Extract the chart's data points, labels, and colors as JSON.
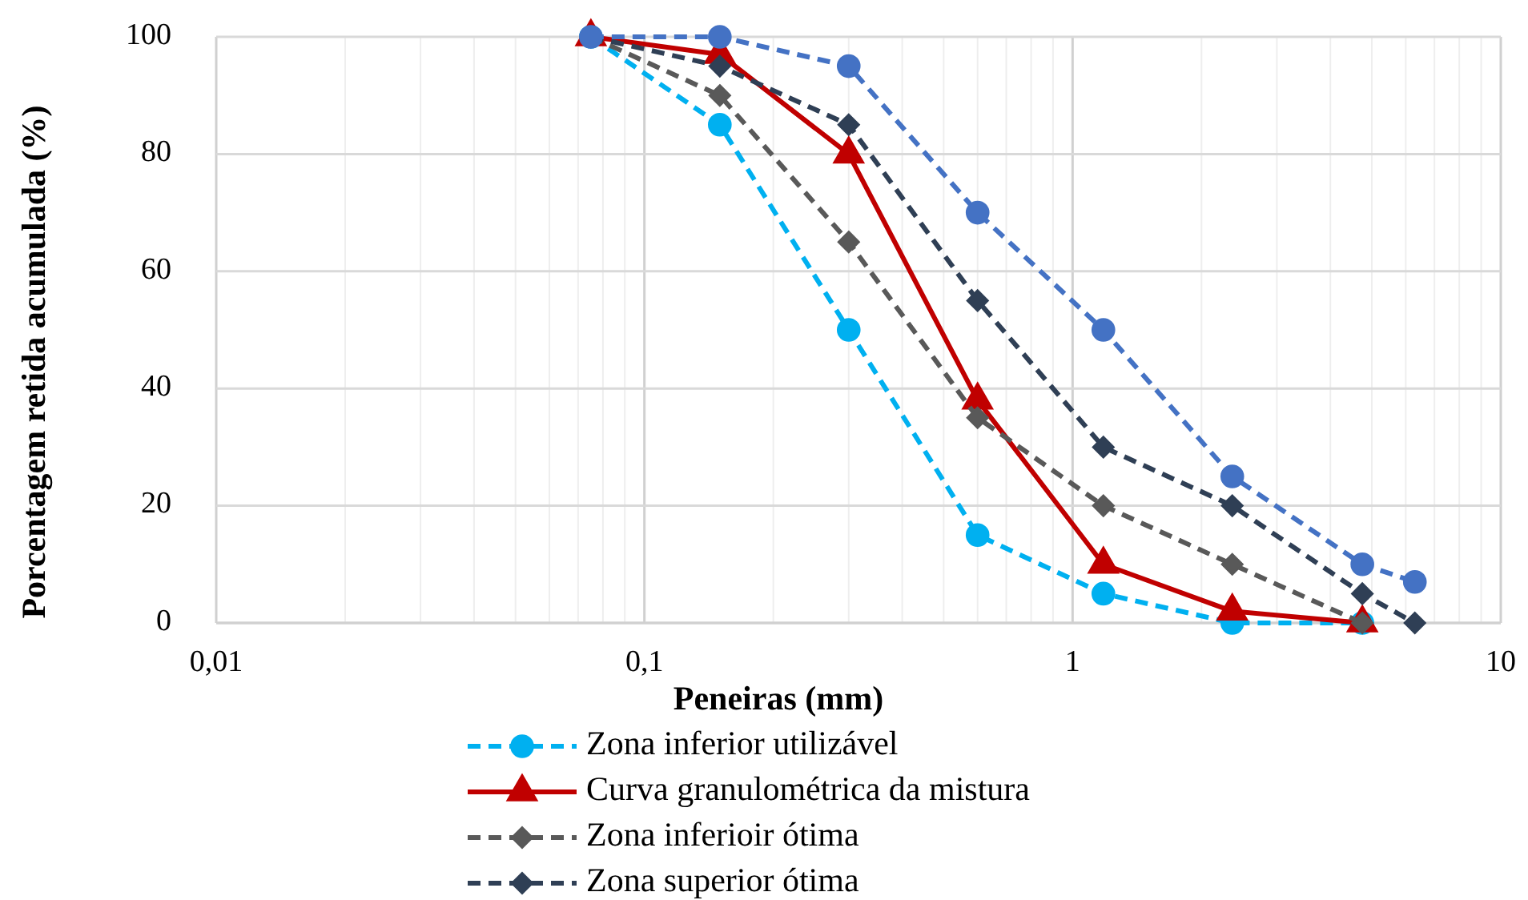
{
  "chart_data": {
    "type": "line",
    "xlabel": "Peneiras (mm)",
    "ylabel": "Porcentagem retida acumulada (%)",
    "log": "x",
    "xlim": [
      0.01,
      10
    ],
    "xticks": [
      {
        "value": 0.01,
        "label": "0,01"
      },
      {
        "value": 0.1,
        "label": "0,1"
      },
      1,
      10
    ],
    "ylim": [
      0,
      100
    ],
    "yticks": [
      0,
      20,
      40,
      60,
      80,
      100
    ],
    "grid": true,
    "legend": "bottom",
    "series": [
      {
        "name": "Zona inferior utilizável",
        "color": "#00b0f0",
        "marker": "circle",
        "line_style": "dashed",
        "x": [
          0.075,
          0.15,
          0.3,
          0.6,
          1.18,
          2.36,
          4.75
        ],
        "values": [
          100,
          85,
          50,
          15,
          5,
          0,
          0
        ]
      },
      {
        "name": "Curva granulométrica da mistura",
        "color": "#c00000",
        "marker": "triangle",
        "line_style": "solid",
        "x": [
          0.075,
          0.15,
          0.3,
          0.6,
          1.18,
          2.36,
          4.75
        ],
        "values": [
          100,
          97,
          80,
          38,
          10,
          2,
          0
        ]
      },
      {
        "name": "Zona inferioir ótima",
        "color": "#595959",
        "marker": "diamond",
        "line_style": "dashed",
        "x": [
          0.075,
          0.15,
          0.3,
          0.6,
          1.18,
          2.36,
          4.75
        ],
        "values": [
          100,
          90,
          65,
          35,
          20,
          10,
          0
        ]
      },
      {
        "name": "Zona superior ótima",
        "color": "#2f3f55",
        "marker": "diamond",
        "line_style": "dashed",
        "x": [
          0.075,
          0.15,
          0.3,
          0.6,
          1.18,
          2.36,
          4.75,
          6.3
        ],
        "values": [
          100,
          95,
          85,
          55,
          30,
          20,
          5,
          0
        ]
      },
      {
        "color": "#4472c4",
        "marker": "circle",
        "line_style": "dashed",
        "x": [
          0.075,
          0.15,
          0.3,
          0.6,
          1.18,
          2.36,
          4.75,
          6.3
        ],
        "values": [
          100,
          100,
          95,
          70,
          50,
          25,
          10,
          7
        ]
      }
    ]
  }
}
